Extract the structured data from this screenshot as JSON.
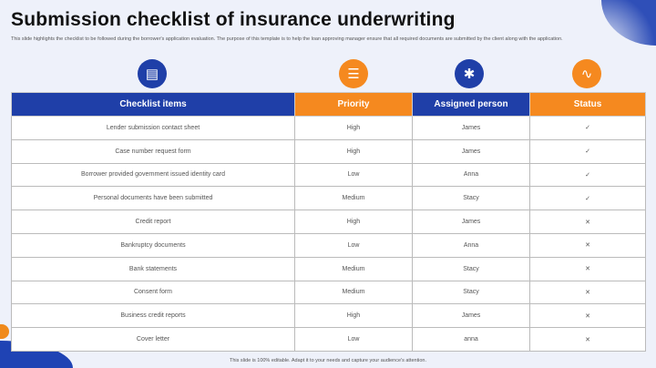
{
  "title": "Submission checklist of insurance underwriting",
  "description": "This slide highlights the checklist to be followed during the borrower's application evaluation. The purpose of this template is to help the loan approving manager ensure that all required documents are submitted by the client along with the application.",
  "icons": [
    "clipboard-icon",
    "list-icon",
    "network-icon",
    "pulse-icon"
  ],
  "colors": {
    "blue": "#1f3fa8",
    "orange": "#f5891f"
  },
  "columns": [
    "Checklist items",
    "Priority",
    "Assigned person",
    "Status"
  ],
  "rows": [
    {
      "item": "Lender submission contact sheet",
      "priority": "High",
      "person": "James",
      "status": "✓"
    },
    {
      "item": "Case number request form",
      "priority": "High",
      "person": "James",
      "status": "✓"
    },
    {
      "item": "Borrower provided government issued identity card",
      "priority": "Low",
      "person": "Anna",
      "status": "✓"
    },
    {
      "item": "Personal documents have been submitted",
      "priority": "Medium",
      "person": "Stacy",
      "status": "✓"
    },
    {
      "item": "Credit report",
      "priority": "High",
      "person": "James",
      "status": "✕"
    },
    {
      "item": "Bankruptcy documents",
      "priority": "Low",
      "person": "Anna",
      "status": "✕"
    },
    {
      "item": "Bank statements",
      "priority": "Medium",
      "person": "Stacy",
      "status": "✕"
    },
    {
      "item": "Consent form",
      "priority": "Medium",
      "person": "Stacy",
      "status": "✕"
    },
    {
      "item": "Business credit reports",
      "priority": "High",
      "person": "James",
      "status": "✕"
    },
    {
      "item": "Cover letter",
      "priority": "Low",
      "person": "anna",
      "status": "✕"
    }
  ],
  "footer": "This slide is 100% editable. Adapt it to your needs and capture your audience's attention."
}
